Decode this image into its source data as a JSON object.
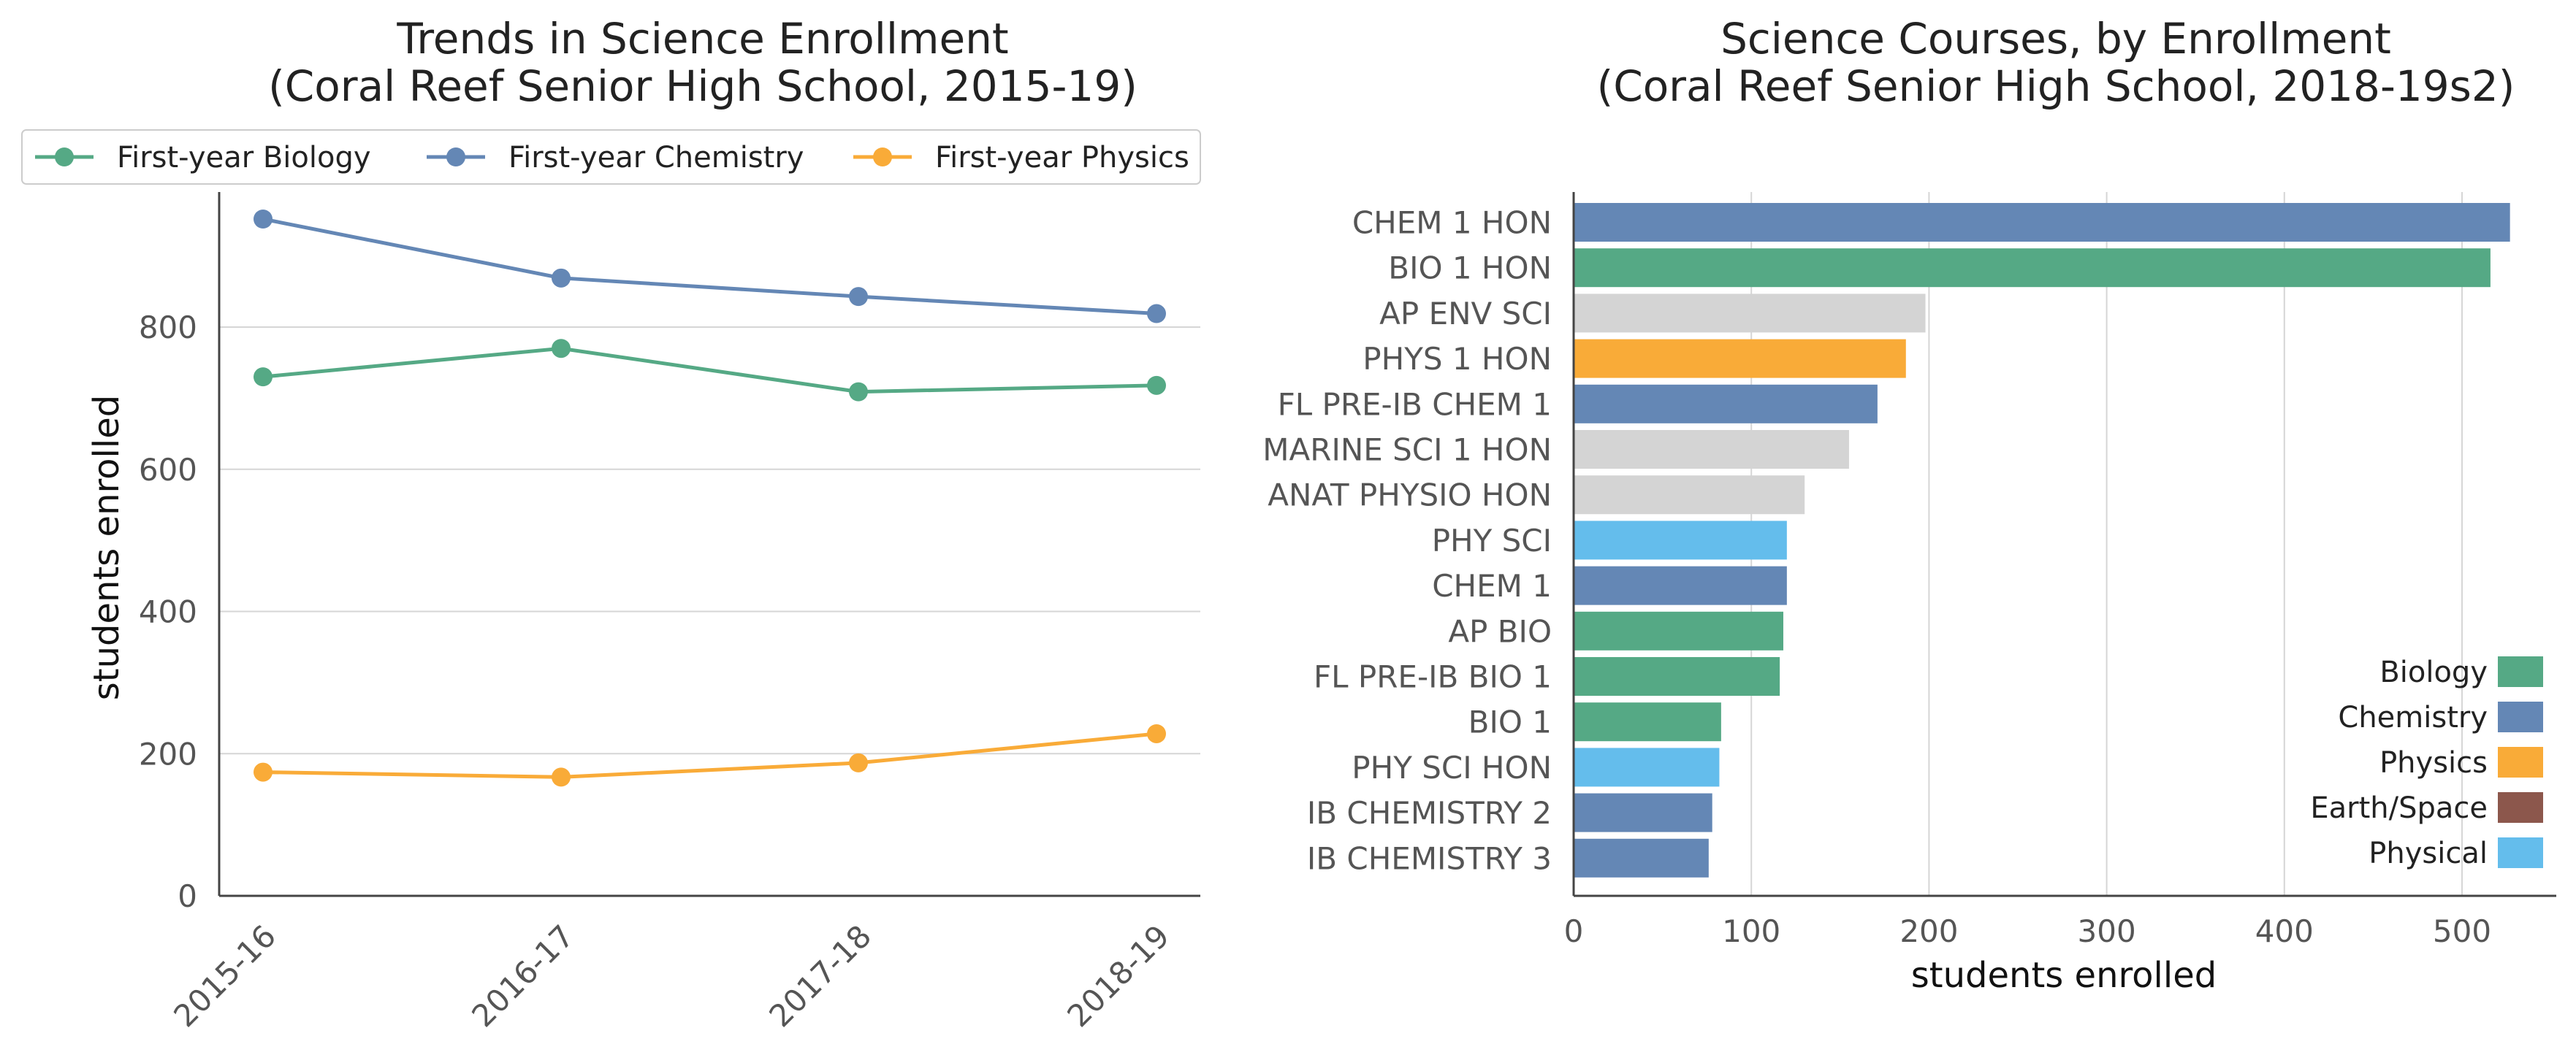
{
  "colors": {
    "biology": "#55a985",
    "chemistry": "#6487b5",
    "physics": "#f9ab38",
    "earth_space": "#8c574c",
    "physical": "#64bdec",
    "other": "#d4d4d4"
  },
  "chart_data": [
    {
      "type": "line",
      "title_line1": "Trends in Science Enrollment",
      "title_line2": "(Coral Reef Senior High School, 2015-19)",
      "xlabel": "",
      "ylabel": "students enrolled",
      "x": [
        "2015-16",
        "2016-17",
        "2017-18",
        "2018-19"
      ],
      "ylim": [
        0,
        990
      ],
      "yticks": [
        0,
        200,
        400,
        600,
        800
      ],
      "grid": "horizontal",
      "legend_position": "top",
      "series": [
        {
          "name": "First-year Biology",
          "color": "#55a985",
          "values": [
            730,
            770,
            709,
            718
          ]
        },
        {
          "name": "First-year Chemistry",
          "color": "#6487b5",
          "values": [
            952,
            869,
            843,
            819
          ]
        },
        {
          "name": "First-year Physics",
          "color": "#f9ab38",
          "values": [
            174,
            167,
            187,
            228
          ]
        }
      ]
    },
    {
      "type": "bar",
      "orientation": "horizontal",
      "title_line1": "Science Courses, by Enrollment",
      "title_line2": "(Coral Reef Senior High School, 2018-19s2)",
      "xlabel": "students enrolled",
      "ylabel": "",
      "xlim": [
        0,
        550
      ],
      "xticks": [
        0,
        100,
        200,
        300,
        400,
        500
      ],
      "grid": "vertical",
      "legend_position": "lower-right",
      "categories": [
        "CHEM 1 HON",
        "BIO 1 HON",
        "AP ENV SCI",
        "PHYS 1 HON",
        "FL PRE-IB CHEM 1",
        "MARINE SCI 1 HON",
        "ANAT PHYSIO HON",
        "PHY SCI",
        "CHEM 1",
        "AP BIO",
        "FL PRE-IB BIO 1",
        "BIO 1",
        "PHY SCI HON",
        "IB CHEMISTRY 2",
        "IB CHEMISTRY 3"
      ],
      "values": [
        527,
        516,
        198,
        187,
        171,
        155,
        130,
        120,
        120,
        118,
        116,
        83,
        82,
        78,
        76
      ],
      "bar_colors": [
        "#6487b5",
        "#55a985",
        "#d4d4d4",
        "#f9ab38",
        "#6487b5",
        "#d4d4d4",
        "#d4d4d4",
        "#64bdec",
        "#6487b5",
        "#55a985",
        "#55a985",
        "#55a985",
        "#64bdec",
        "#6487b5",
        "#6487b5"
      ],
      "legend": [
        {
          "name": "Biology",
          "color": "#55a985"
        },
        {
          "name": "Chemistry",
          "color": "#6487b5"
        },
        {
          "name": "Physics",
          "color": "#f9ab38"
        },
        {
          "name": "Earth/Space",
          "color": "#8c574c"
        },
        {
          "name": "Physical",
          "color": "#64bdec"
        }
      ]
    }
  ]
}
